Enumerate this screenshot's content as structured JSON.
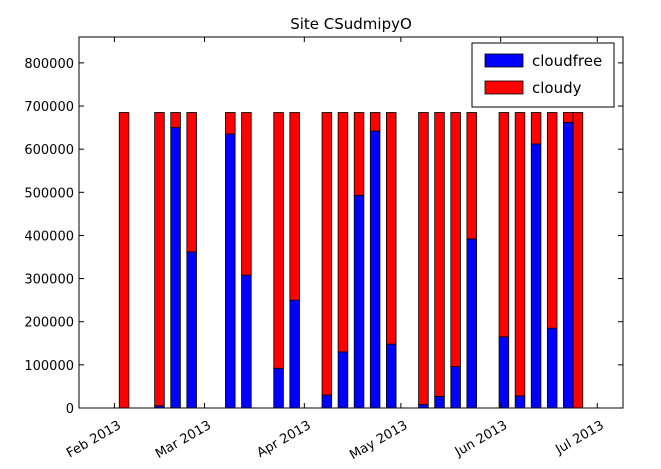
{
  "chart_data": {
    "type": "bar",
    "stacked": true,
    "title": "Site CSudmipyO",
    "xlabel": "",
    "ylabel": "",
    "ylim": [
      0,
      860000
    ],
    "yticks": [
      0,
      100000,
      200000,
      300000,
      400000,
      500000,
      600000,
      700000,
      800000
    ],
    "ytick_labels": [
      "0",
      "100000",
      "200000",
      "300000",
      "400000",
      "500000",
      "600000",
      "700000",
      "800000"
    ],
    "xlim": [
      "2013-01-21",
      "2013-07-09"
    ],
    "xticks": [
      "2013-02-01",
      "2013-03-01",
      "2013-04-01",
      "2013-05-01",
      "2013-06-01",
      "2013-07-01"
    ],
    "xtick_labels": [
      "Feb 2013",
      "Mar 2013",
      "Apr 2013",
      "May 2013",
      "Jun 2013",
      "Jul 2013"
    ],
    "grid": false,
    "legend_position": "top-right",
    "bar_width_days": 3,
    "dates": [
      "2013-02-04",
      "2013-02-15",
      "2013-02-20",
      "2013-02-25",
      "2013-03-09",
      "2013-03-14",
      "2013-03-24",
      "2013-03-29",
      "2013-04-08",
      "2013-04-13",
      "2013-04-18",
      "2013-04-23",
      "2013-04-28",
      "2013-05-08",
      "2013-05-13",
      "2013-05-18",
      "2013-05-23",
      "2013-06-02",
      "2013-06-07",
      "2013-06-12",
      "2013-06-17",
      "2013-06-22",
      "2013-06-25"
    ],
    "series": [
      {
        "name": "cloudfree",
        "color": "#0000ff",
        "values": [
          0,
          5000,
          650000,
          362000,
          635000,
          308000,
          92000,
          250000,
          30000,
          130000,
          493000,
          642000,
          148000,
          8000,
          27000,
          96000,
          392000,
          165000,
          28000,
          612000,
          185000,
          662000,
          0
        ]
      },
      {
        "name": "cloudy",
        "color": "#ff0000",
        "values": [
          685000,
          680000,
          35000,
          323000,
          50000,
          377000,
          593000,
          435000,
          655000,
          555000,
          192000,
          43000,
          537000,
          677000,
          658000,
          589000,
          293000,
          520000,
          657000,
          73000,
          500000,
          23000,
          685000
        ]
      }
    ]
  }
}
